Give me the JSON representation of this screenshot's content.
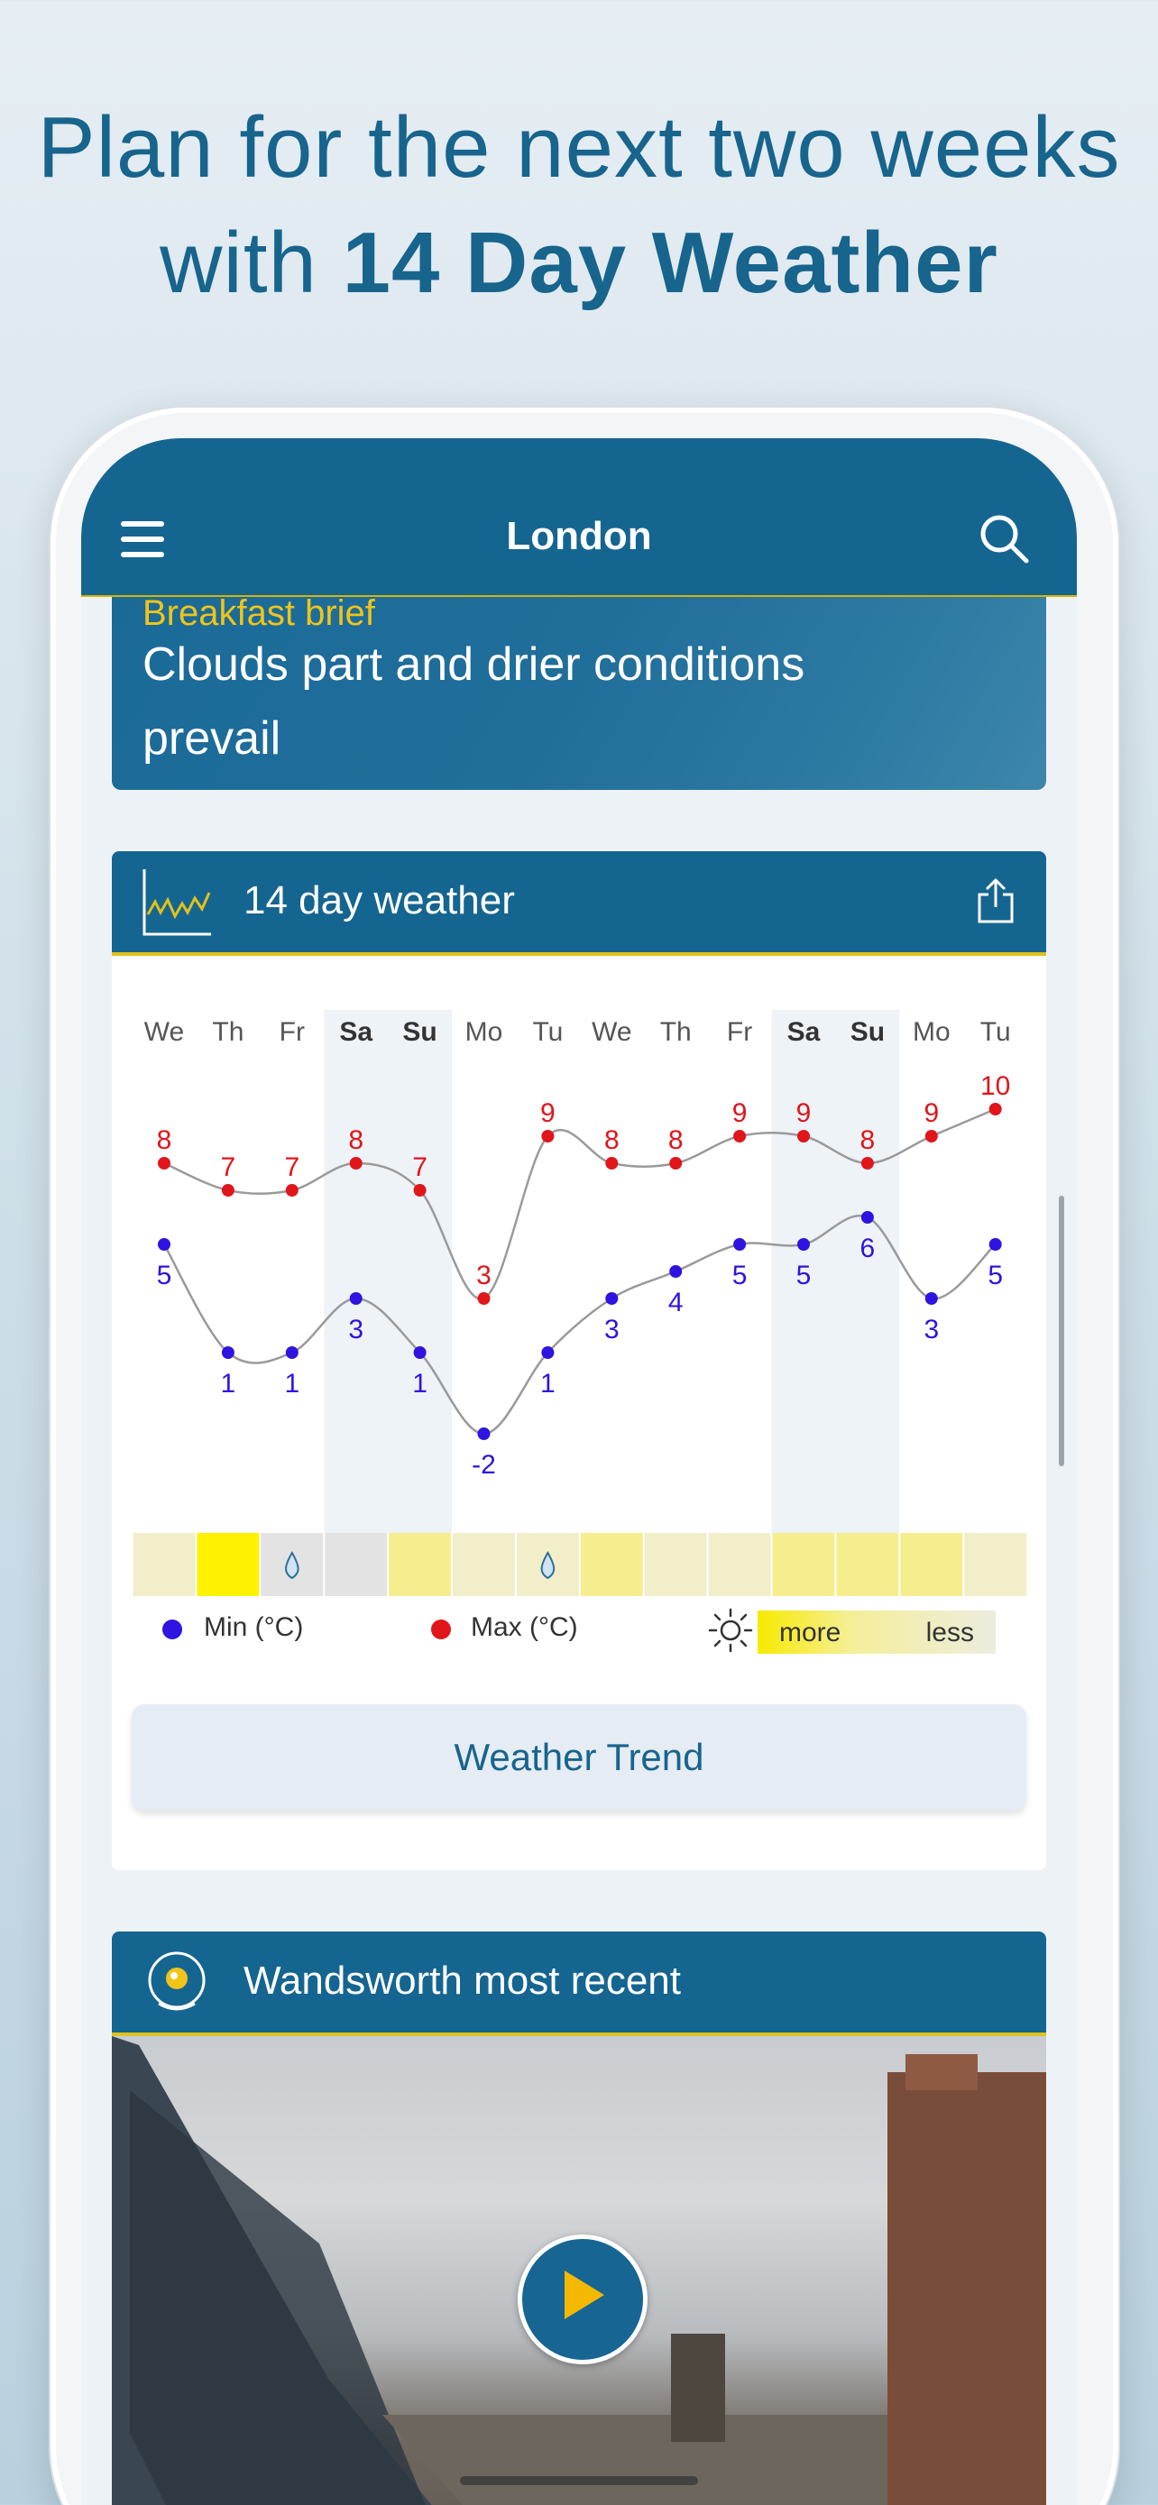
{
  "promo": {
    "line1": "Plan for the next two weeks",
    "line2_prefix": "with",
    "line2_bold": "14 Day Weather"
  },
  "appbar": {
    "title": "London",
    "menu_icon": "hamburger-menu-icon",
    "search_icon": "search-icon"
  },
  "story": {
    "kicker": "Breakfast brief",
    "headline": "Clouds part and drier conditions prevail"
  },
  "forecast_card": {
    "title": "14 day weather",
    "button_label": "Weather Trend",
    "legend": {
      "min_label": "Min (°C)",
      "max_label": "Max (°C)",
      "more_label": "more",
      "less_label": "less"
    },
    "colors": {
      "min": "#2f13e0",
      "max": "#e0161b",
      "header": "#156591",
      "accent": "#e0c21a"
    }
  },
  "chart_data": {
    "type": "line",
    "categories": [
      "We",
      "Th",
      "Fr",
      "Sa",
      "Su",
      "Mo",
      "Tu",
      "We",
      "Th",
      "Fr",
      "Sa",
      "Su",
      "Mo",
      "Tu"
    ],
    "weekend_indices": [
      3,
      4,
      10,
      11
    ],
    "series": [
      {
        "name": "Max (°C)",
        "values": [
          8,
          7,
          7,
          8,
          7,
          3,
          9,
          8,
          8,
          9,
          9,
          8,
          9,
          10
        ]
      },
      {
        "name": "Min (°C)",
        "values": [
          5,
          1,
          1,
          3,
          1,
          -2,
          1,
          3,
          4,
          5,
          5,
          6,
          3,
          5
        ]
      }
    ],
    "sunshine": [
      {
        "level": "low",
        "rain": false
      },
      {
        "level": "high",
        "rain": false
      },
      {
        "level": "none",
        "rain": true
      },
      {
        "level": "none",
        "rain": false
      },
      {
        "level": "mid",
        "rain": false
      },
      {
        "level": "low",
        "rain": false
      },
      {
        "level": "low",
        "rain": true
      },
      {
        "level": "mid",
        "rain": false
      },
      {
        "level": "low",
        "rain": false
      },
      {
        "level": "low",
        "rain": false
      },
      {
        "level": "mid",
        "rain": false
      },
      {
        "level": "mid",
        "rain": false
      },
      {
        "level": "mid",
        "rain": false
      },
      {
        "level": "low",
        "rain": false
      }
    ]
  },
  "webcam_card": {
    "title": "Wandsworth most recent",
    "play_icon": "play-icon"
  }
}
